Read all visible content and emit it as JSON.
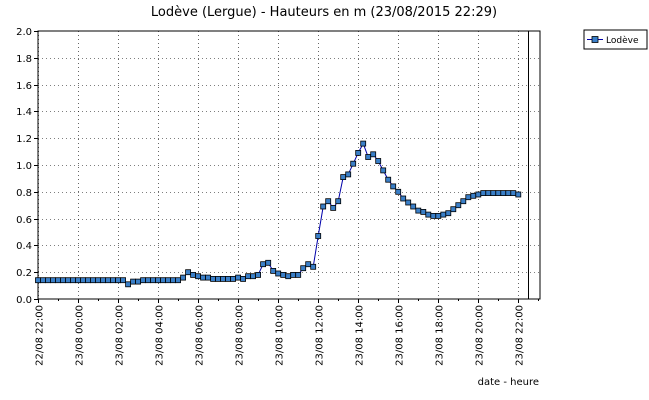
{
  "chart_data": {
    "type": "line",
    "title": "Lodève (Lergue) - Hauteurs en m (23/08/2015 22:29)",
    "xlabel": "date - heure",
    "ylabel": "",
    "ylim": [
      0,
      2.0
    ],
    "yticks": [
      "0.0",
      "0.2",
      "0.4",
      "0.6",
      "0.8",
      "1.0",
      "1.2",
      "1.4",
      "1.6",
      "1.8",
      "2.0"
    ],
    "xlim": [
      "22/08 22:00",
      "23/08 23:05"
    ],
    "xticks": [
      "22/08 22:00",
      "23/08 00:00",
      "23/08 02:00",
      "23/08 04:00",
      "23/08 06:00",
      "23/08 08:00",
      "23/08 10:00",
      "23/08 12:00",
      "23/08 14:00",
      "23/08 16:00",
      "23/08 18:00",
      "23/08 20:00",
      "23/08 22:00"
    ],
    "current_time": "23/08 22:29",
    "grid": true,
    "legend": "top-right",
    "series": [
      {
        "name": "Lodève",
        "color": "#0000aa",
        "marker_color": "#3a7fc8",
        "x": [
          "22/08 22:00",
          "22/08 22:15",
          "22/08 22:30",
          "22/08 22:45",
          "22/08 23:00",
          "22/08 23:15",
          "22/08 23:30",
          "22/08 23:45",
          "23/08 00:00",
          "23/08 00:15",
          "23/08 00:30",
          "23/08 00:45",
          "23/08 01:00",
          "23/08 01:15",
          "23/08 01:30",
          "23/08 01:45",
          "23/08 02:00",
          "23/08 02:15",
          "23/08 02:30",
          "23/08 02:45",
          "23/08 03:00",
          "23/08 03:15",
          "23/08 03:30",
          "23/08 03:45",
          "23/08 04:00",
          "23/08 04:15",
          "23/08 04:30",
          "23/08 04:45",
          "23/08 05:00",
          "23/08 05:15",
          "23/08 05:30",
          "23/08 05:45",
          "23/08 06:00",
          "23/08 06:15",
          "23/08 06:30",
          "23/08 06:45",
          "23/08 07:00",
          "23/08 07:15",
          "23/08 07:30",
          "23/08 07:45",
          "23/08 08:00",
          "23/08 08:15",
          "23/08 08:30",
          "23/08 08:45",
          "23/08 09:00",
          "23/08 09:15",
          "23/08 09:30",
          "23/08 09:45",
          "23/08 10:00",
          "23/08 10:15",
          "23/08 10:30",
          "23/08 10:45",
          "23/08 11:00",
          "23/08 11:15",
          "23/08 11:30",
          "23/08 11:45",
          "23/08 12:00",
          "23/08 12:15",
          "23/08 12:30",
          "23/08 12:45",
          "23/08 13:00",
          "23/08 13:15",
          "23/08 13:30",
          "23/08 13:45",
          "23/08 14:00",
          "23/08 14:15",
          "23/08 14:30",
          "23/08 14:45",
          "23/08 15:00",
          "23/08 15:15",
          "23/08 15:30",
          "23/08 15:45",
          "23/08 16:00",
          "23/08 16:15",
          "23/08 16:30",
          "23/08 16:45",
          "23/08 17:00",
          "23/08 17:15",
          "23/08 17:30",
          "23/08 17:45",
          "23/08 18:00",
          "23/08 18:15",
          "23/08 18:30",
          "23/08 18:45",
          "23/08 19:00",
          "23/08 19:15",
          "23/08 19:30",
          "23/08 19:45",
          "23/08 20:00",
          "23/08 20:15",
          "23/08 20:30",
          "23/08 20:45",
          "23/08 21:00",
          "23/08 21:15",
          "23/08 21:30",
          "23/08 21:45",
          "23/08 22:00"
        ],
        "values": [
          0.14,
          0.14,
          0.14,
          0.14,
          0.14,
          0.14,
          0.14,
          0.14,
          0.14,
          0.14,
          0.14,
          0.14,
          0.14,
          0.14,
          0.14,
          0.14,
          0.14,
          0.14,
          0.11,
          0.13,
          0.13,
          0.14,
          0.14,
          0.14,
          0.14,
          0.14,
          0.14,
          0.14,
          0.14,
          0.16,
          0.2,
          0.18,
          0.17,
          0.16,
          0.16,
          0.15,
          0.15,
          0.15,
          0.15,
          0.15,
          0.16,
          0.15,
          0.17,
          0.17,
          0.18,
          0.26,
          0.27,
          0.21,
          0.19,
          0.18,
          0.17,
          0.18,
          0.18,
          0.23,
          0.26,
          0.24,
          0.47,
          0.69,
          0.73,
          0.68,
          0.73,
          0.91,
          0.93,
          1.01,
          1.09,
          1.16,
          1.06,
          1.08,
          1.03,
          0.96,
          0.89,
          0.84,
          0.8,
          0.75,
          0.72,
          0.69,
          0.66,
          0.65,
          0.63,
          0.62,
          0.62,
          0.63,
          0.64,
          0.67,
          0.7,
          0.73,
          0.76,
          0.77,
          0.78,
          0.79,
          0.79,
          0.79,
          0.79,
          0.79,
          0.79,
          0.79,
          0.78
        ]
      }
    ]
  }
}
